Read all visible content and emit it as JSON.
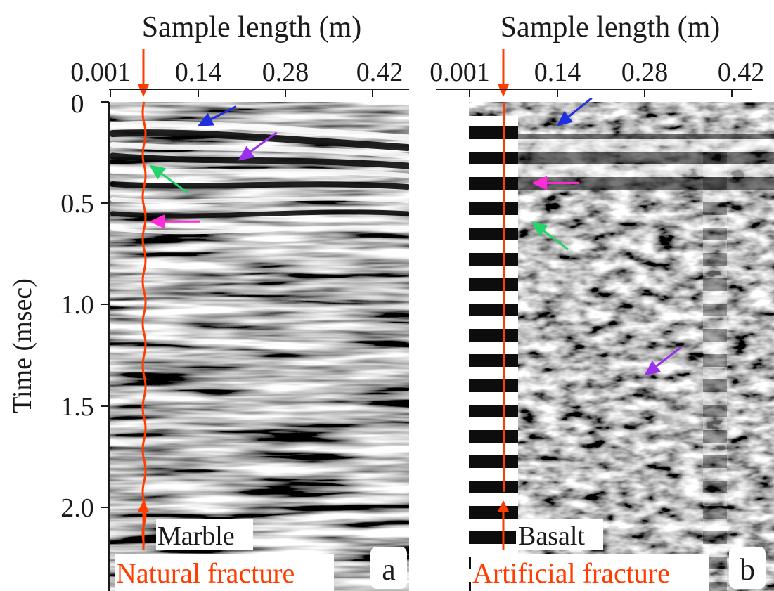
{
  "figure": {
    "colors": {
      "fracture": "#ff3d00",
      "arrow_blue": "#1f2fe0",
      "arrow_purple": "#9b30ef",
      "arrow_green": "#22d46a",
      "arrow_magenta": "#ff2ad8"
    }
  },
  "chart_data": [
    {
      "type": "heatmap",
      "panel_label": "a",
      "rock_label": "Marble",
      "fracture_label": "Natural fracture",
      "fracture_shape": "wavy",
      "xlabel": "Sample length (m)",
      "ylabel": "Time (msec)",
      "xticks": [
        "0.001",
        "0.14",
        "0.28",
        "0.42"
      ],
      "yticks": [
        "0",
        "0.5",
        "1.0",
        "1.5",
        "2.0"
      ],
      "xlim": [
        0.001,
        0.48
      ],
      "ylim": [
        0,
        2.35
      ],
      "fracture_position_m": 0.055,
      "arrows": [
        {
          "color": "blue",
          "tip_m": 0.14,
          "tip_msec": 0.12
        },
        {
          "color": "purple",
          "tip_m": 0.205,
          "tip_msec": 0.29
        },
        {
          "color": "green",
          "tip_m": 0.063,
          "tip_msec": 0.31
        },
        {
          "color": "magenta",
          "tip_m": 0.063,
          "tip_msec": 0.59
        }
      ]
    },
    {
      "type": "heatmap",
      "panel_label": "b",
      "rock_label": "Basalt",
      "fracture_label": "Artificial fracture",
      "fracture_shape": "straight",
      "xlabel": "Sample length (m)",
      "ylabel": "",
      "xticks": [
        "0.001",
        "0.14",
        "0.28",
        "0.42"
      ],
      "yticks": [],
      "xlim": [
        0.001,
        0.48
      ],
      "ylim": [
        0,
        2.35
      ],
      "fracture_position_m": 0.1,
      "arrows": [
        {
          "color": "blue",
          "tip_m": 0.14,
          "tip_msec": 0.12
        },
        {
          "color": "magenta",
          "tip_m": 0.1,
          "tip_msec": 0.4
        },
        {
          "color": "green",
          "tip_m": 0.1,
          "tip_msec": 0.59
        },
        {
          "color": "purple",
          "tip_m": 0.28,
          "tip_msec": 1.35
        }
      ]
    }
  ]
}
